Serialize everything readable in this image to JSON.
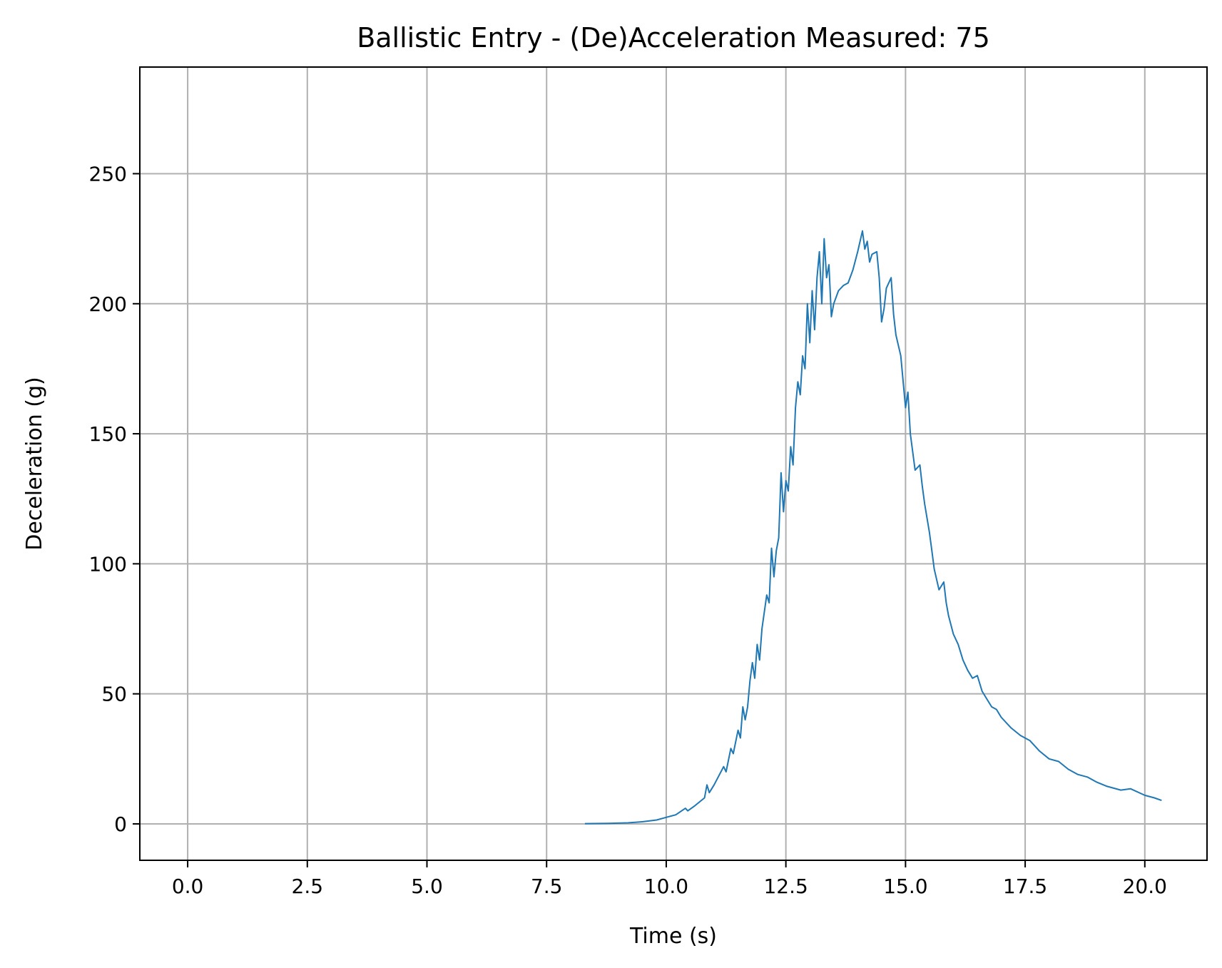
{
  "chart_data": {
    "type": "line",
    "title": "Ballistic Entry - (De)Acceleration Measured: 75",
    "xlabel": "Time (s)",
    "ylabel": "Deceleration (g)",
    "xlim": [
      -1.0,
      21.3
    ],
    "ylim": [
      -14,
      291
    ],
    "xticks": [
      0.0,
      2.5,
      5.0,
      7.5,
      10.0,
      12.5,
      15.0,
      17.5,
      20.0
    ],
    "xtick_labels": [
      "0.0",
      "2.5",
      "5.0",
      "7.5",
      "10.0",
      "12.5",
      "15.0",
      "17.5",
      "20.0"
    ],
    "yticks": [
      0,
      50,
      100,
      150,
      200,
      250
    ],
    "ytick_labels": [
      "0",
      "50",
      "100",
      "150",
      "200",
      "250"
    ],
    "grid": true,
    "colors": {
      "line": "#1f77b4",
      "grid": "#b0b0b0"
    },
    "series": [
      {
        "x": [
          8.3,
          8.8,
          9.2,
          9.5,
          9.8,
          10.0,
          10.2,
          10.4,
          10.45,
          10.6,
          10.8,
          10.85,
          10.9,
          11.0,
          11.2,
          11.25,
          11.35,
          11.4,
          11.5,
          11.55,
          11.6,
          11.65,
          11.7,
          11.75,
          11.8,
          11.85,
          11.9,
          11.95,
          12.0,
          12.1,
          12.15,
          12.2,
          12.25,
          12.3,
          12.35,
          12.4,
          12.45,
          12.5,
          12.55,
          12.6,
          12.65,
          12.7,
          12.75,
          12.8,
          12.85,
          12.9,
          12.95,
          13.0,
          13.05,
          13.1,
          13.15,
          13.2,
          13.25,
          13.3,
          13.35,
          13.4,
          13.45,
          13.5,
          13.6,
          13.7,
          13.8,
          13.9,
          14.0,
          14.1,
          14.15,
          14.2,
          14.25,
          14.3,
          14.4,
          14.45,
          14.5,
          14.55,
          14.6,
          14.7,
          14.75,
          14.8,
          14.9,
          15.0,
          15.05,
          15.1,
          15.2,
          15.3,
          15.35,
          15.4,
          15.5,
          15.55,
          15.6,
          15.7,
          15.8,
          15.85,
          15.9,
          16.0,
          16.1,
          16.2,
          16.3,
          16.4,
          16.5,
          16.6,
          16.7,
          16.8,
          16.9,
          17.0,
          17.2,
          17.4,
          17.6,
          17.8,
          18.0,
          18.2,
          18.4,
          18.6,
          18.8,
          19.0,
          19.2,
          19.5,
          19.7,
          20.0,
          20.2,
          20.35
        ],
        "y": [
          0.1,
          0.2,
          0.4,
          0.8,
          1.5,
          2.5,
          3.5,
          6.0,
          5.0,
          7.0,
          10.0,
          15.0,
          12.0,
          15.0,
          22.0,
          20.0,
          29.0,
          27.0,
          36.0,
          33.0,
          45.0,
          40.0,
          45.0,
          55.0,
          62.0,
          56.0,
          69.0,
          63.0,
          75.0,
          88.0,
          85.0,
          106.0,
          95.0,
          105.0,
          110.0,
          135.0,
          120.0,
          132.0,
          128.0,
          145.0,
          138.0,
          160.0,
          170.0,
          165.0,
          180.0,
          175.0,
          200.0,
          185.0,
          205.0,
          190.0,
          210.0,
          220.0,
          200.0,
          225.0,
          210.0,
          215.0,
          195.0,
          200.0,
          205.0,
          207.0,
          208.0,
          213.0,
          220.0,
          228.0,
          221.0,
          224.0,
          216.0,
          219.0,
          220.0,
          210.0,
          193.0,
          198.0,
          206.0,
          210.0,
          196.0,
          188.0,
          180.0,
          160.0,
          166.0,
          150.0,
          136.0,
          138.0,
          130.0,
          123.0,
          112.0,
          105.0,
          98.0,
          90.0,
          93.0,
          85.0,
          80.0,
          73.0,
          69.0,
          63.0,
          59.0,
          56.0,
          57.0,
          51.0,
          48.0,
          45.0,
          44.0,
          41.0,
          37.0,
          34.0,
          32.0,
          28.0,
          25.0,
          24.0,
          21.0,
          19.0,
          18.0,
          16.0,
          14.5,
          13.0,
          13.5,
          11.0,
          10.0,
          9.0
        ]
      }
    ]
  }
}
